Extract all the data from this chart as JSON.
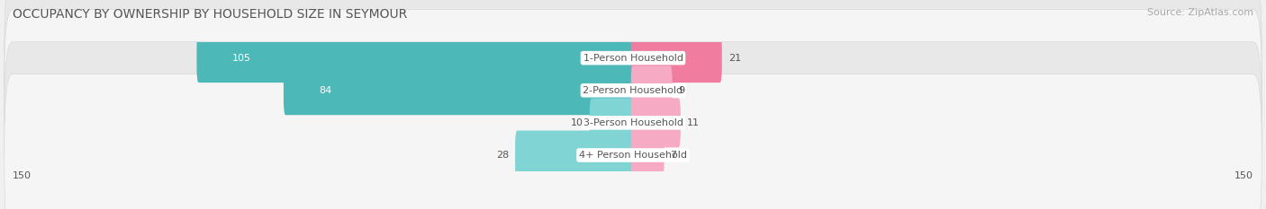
{
  "title": "OCCUPANCY BY OWNERSHIP BY HOUSEHOLD SIZE IN SEYMOUR",
  "source": "Source: ZipAtlas.com",
  "categories": [
    "1-Person Household",
    "2-Person Household",
    "3-Person Household",
    "4+ Person Household"
  ],
  "owner_values": [
    105,
    84,
    10,
    28
  ],
  "renter_values": [
    21,
    9,
    11,
    7
  ],
  "owner_color": "#4db8b8",
  "renter_color": "#f07ca0",
  "owner_color_light": "#80d4d4",
  "renter_color_light": "#f7aac3",
  "axis_max": 150,
  "bar_height": 0.52,
  "background_color": "#f0f0f0",
  "row_bg_even": "#e8e8e8",
  "row_bg_odd": "#f5f5f5",
  "center_label_color": "#555555",
  "value_label_color": "#555555",
  "value_label_white": "#ffffff",
  "title_color": "#555555",
  "source_color": "#aaaaaa",
  "legend_label_color": "#555555",
  "title_fontsize": 10,
  "source_fontsize": 8,
  "bar_label_fontsize": 8,
  "cat_label_fontsize": 8,
  "axis_tick_fontsize": 8,
  "legend_fontsize": 8
}
